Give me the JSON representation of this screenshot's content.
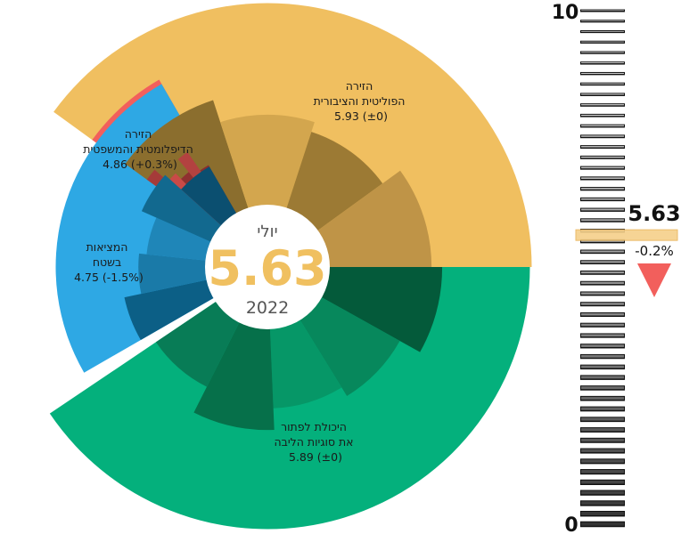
{
  "chart_data": {
    "type": "pie",
    "center": {
      "month": "יולי",
      "value": "5.63",
      "year": "2022"
    },
    "overall": {
      "value": 5.63,
      "change": "-0.2%",
      "direction": "down"
    },
    "scale": {
      "min": 0,
      "max": 10,
      "min_label": "0",
      "max_label": "10"
    },
    "segments": [
      {
        "name": "הזירה הפוליטית והציבורית",
        "label_lines": [
          "הזירה",
          "הפוליטית והציבורית",
          "5.93 (±0)"
        ],
        "value": 5.93,
        "change": "±0",
        "color": "#f0bf60",
        "inner_shades": [
          "#8b6e2e",
          "#d3a64e",
          "#9c7a34",
          "#bf9447"
        ]
      },
      {
        "name": "הזירה הדיפלומטית והמשפטית",
        "label_lines": [
          "הזירה",
          "הדיפלומטית והמשפטית",
          "4.86 (+0.3%)"
        ],
        "value": 4.86,
        "change": "+0.3%",
        "color": "#f25f5c",
        "inner_shades": [
          "#a53b39",
          "#c94a47",
          "#8f3030",
          "#b34240",
          "#8a2f2f"
        ]
      },
      {
        "name": "המציאות בשטח",
        "label_lines": [
          "המציאות",
          "בשטח",
          "4.75 (-1.5%)"
        ],
        "value": 4.75,
        "change": "-1.5%",
        "color": "#2ea8e4",
        "inner_shades": [
          "#0c5f86",
          "#1a7aa8",
          "#1f86b8",
          "#12698f",
          "#0b4f70"
        ]
      },
      {
        "name": "היכולת לפתור את סוגיות הליבה",
        "label_lines": [
          "היכולת לפתור",
          "את סוגיות הליבה",
          "5.89 (±0)"
        ],
        "value": 5.89,
        "change": "±0",
        "color": "#04b07c",
        "inner_shades": [
          "#045a3a",
          "#07885c",
          "#069767",
          "#06704a",
          "#087c56"
        ]
      }
    ]
  }
}
